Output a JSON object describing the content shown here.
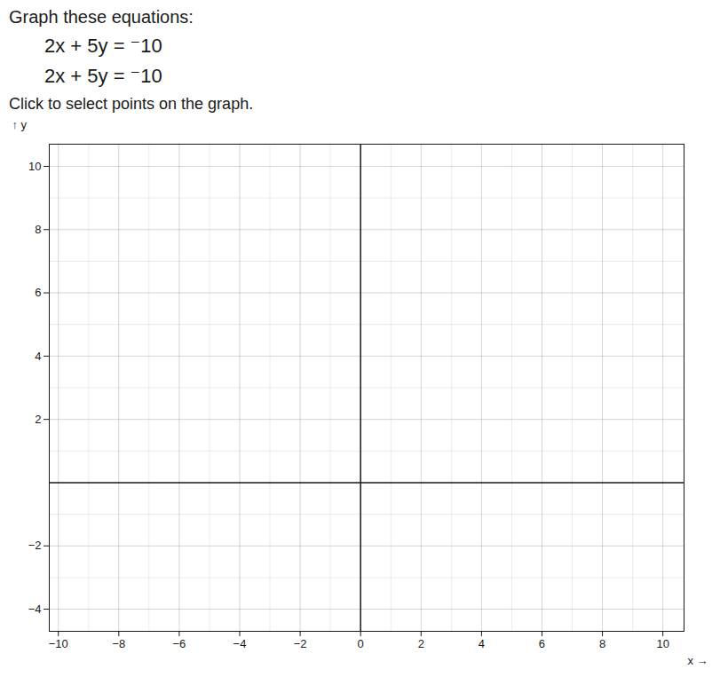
{
  "chart_data": {
    "type": "line",
    "title": "Graph these equations:",
    "annotations": [
      "2x + 5y = ⁻10",
      "2x + 5y = ⁻10"
    ],
    "subtitle": "Click to select points on the graph.",
    "xlabel": "x",
    "ylabel": "y",
    "series": [],
    "xlim": [
      -10.3,
      10.7
    ],
    "ylim": [
      -4.7,
      10.7
    ],
    "xticks": [
      -10,
      -8,
      -6,
      -4,
      -2,
      0,
      2,
      4,
      6,
      8,
      10
    ],
    "yticks": [
      -4,
      -2,
      2,
      4,
      6,
      8,
      10
    ],
    "grid": true
  }
}
